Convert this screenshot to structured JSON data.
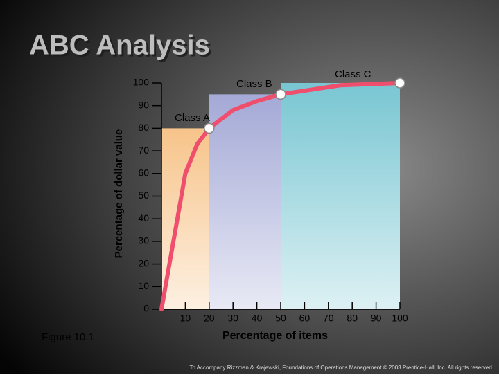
{
  "title": "ABC Analysis",
  "figure_label": "Figure 10.1",
  "footer": "To Accompany Rizzman & Krajewski, Foundations of Operations Management © 2003 Prentice-Hall, Inc. All rights reserved.",
  "chart_data": {
    "type": "line",
    "y_label": "Percentage of dollar value",
    "x_label": "Percentage of items",
    "xlim": [
      0,
      100
    ],
    "ylim": [
      0,
      100
    ],
    "xticks": [
      10,
      20,
      30,
      40,
      50,
      60,
      70,
      80,
      90,
      100
    ],
    "yticks": [
      0,
      10,
      20,
      30,
      40,
      50,
      60,
      70,
      80,
      90,
      100
    ],
    "regions": [
      {
        "name": "Class A",
        "x": [
          0,
          20
        ],
        "top": 80,
        "color": "#f7c48a"
      },
      {
        "name": "Class B",
        "x": [
          20,
          50
        ],
        "top": 95,
        "color": "#a4a9d6"
      },
      {
        "name": "Class C",
        "x": [
          50,
          100
        ],
        "top": 100,
        "color": "#78c6d2"
      }
    ],
    "series": [
      {
        "color": "#ef4f6c",
        "x": [
          0,
          5,
          10,
          15,
          20,
          30,
          40,
          50,
          75,
          100
        ],
        "values": [
          0,
          30,
          60,
          73,
          80,
          88,
          92,
          95,
          99,
          100
        ]
      }
    ]
  }
}
